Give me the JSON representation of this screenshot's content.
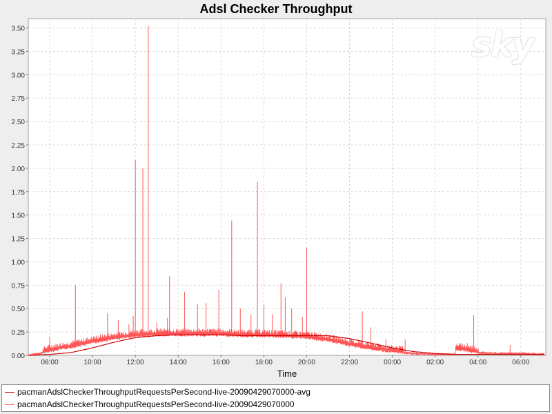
{
  "chart_data": {
    "type": "line",
    "title": "Adsl Checker Throughput",
    "xlabel": "Time",
    "ylabel": "",
    "x_ticks": [
      "08:00",
      "10:00",
      "12:00",
      "14:00",
      "16:00",
      "18:00",
      "20:00",
      "22:00",
      "00:00",
      "02:00",
      "04:00",
      "06:00"
    ],
    "xlim": [
      "07:00",
      "31:10"
    ],
    "y_ticks": [
      "0.00",
      "0.25",
      "0.50",
      "0.75",
      "1.00",
      "1.25",
      "1.50",
      "1.75",
      "2.00",
      "2.25",
      "2.50",
      "2.75",
      "3.00",
      "3.25",
      "3.50"
    ],
    "ylim": [
      0,
      3.6
    ],
    "grid": true,
    "legend_placement": "bottom",
    "series": [
      {
        "name": "pacmanAdslCheckerThroughputRequestsPerSecond-live-20090429070000-avg",
        "color": "#cc0000",
        "x_hours": [
          7.0,
          8.0,
          9.0,
          10.0,
          11.0,
          12.0,
          13.0,
          14.0,
          15.0,
          16.0,
          17.0,
          18.0,
          19.0,
          20.0,
          21.0,
          22.0,
          23.0,
          24.0,
          25.0,
          26.0,
          27.0,
          28.0,
          29.0,
          30.0,
          31.1
        ],
        "values": [
          0.0,
          0.01,
          0.03,
          0.08,
          0.14,
          0.19,
          0.21,
          0.22,
          0.22,
          0.22,
          0.21,
          0.21,
          0.21,
          0.21,
          0.21,
          0.18,
          0.13,
          0.08,
          0.04,
          0.02,
          0.01,
          0.01,
          0.01,
          0.01,
          0.01
        ]
      },
      {
        "name": "pacmanAdslCheckerThroughputRequestsPerSecond-live-20090429070000",
        "color": "#ff5555",
        "baseline_x_hours": [
          7.0,
          7.5,
          8.0,
          9.0,
          10.0,
          11.0,
          12.0,
          13.0,
          14.0,
          15.0,
          16.0,
          17.0,
          18.0,
          19.0,
          20.0,
          21.0,
          22.0,
          23.0,
          24.0,
          25.0,
          26.0,
          26.9,
          27.0,
          28.0,
          29.0,
          30.0,
          31.1
        ],
        "baseline_values": [
          0.0,
          0.02,
          0.05,
          0.09,
          0.14,
          0.18,
          0.21,
          0.22,
          0.22,
          0.22,
          0.22,
          0.21,
          0.21,
          0.2,
          0.19,
          0.16,
          0.11,
          0.07,
          0.04,
          0.02,
          0.01,
          0.01,
          0.07,
          0.03,
          0.02,
          0.02,
          0.01
        ],
        "spikes": [
          {
            "x": 8.0,
            "y": 0.2
          },
          {
            "x": 9.2,
            "y": 0.75
          },
          {
            "x": 10.7,
            "y": 0.45
          },
          {
            "x": 11.2,
            "y": 0.38
          },
          {
            "x": 11.7,
            "y": 0.33
          },
          {
            "x": 11.9,
            "y": 0.42
          },
          {
            "x": 12.0,
            "y": 2.09
          },
          {
            "x": 12.35,
            "y": 2.0
          },
          {
            "x": 12.6,
            "y": 3.52
          },
          {
            "x": 13.0,
            "y": 0.35
          },
          {
            "x": 13.5,
            "y": 0.4
          },
          {
            "x": 13.6,
            "y": 0.85
          },
          {
            "x": 14.3,
            "y": 0.68
          },
          {
            "x": 14.9,
            "y": 0.55
          },
          {
            "x": 15.3,
            "y": 0.56
          },
          {
            "x": 15.9,
            "y": 0.7
          },
          {
            "x": 16.5,
            "y": 1.44
          },
          {
            "x": 16.9,
            "y": 0.5
          },
          {
            "x": 17.4,
            "y": 0.43
          },
          {
            "x": 17.7,
            "y": 1.86
          },
          {
            "x": 18.0,
            "y": 0.54
          },
          {
            "x": 18.4,
            "y": 0.44
          },
          {
            "x": 18.8,
            "y": 0.77
          },
          {
            "x": 19.0,
            "y": 0.62
          },
          {
            "x": 19.3,
            "y": 0.5
          },
          {
            "x": 19.8,
            "y": 0.41
          },
          {
            "x": 20.0,
            "y": 1.15
          },
          {
            "x": 22.6,
            "y": 0.47
          },
          {
            "x": 23.0,
            "y": 0.3
          },
          {
            "x": 23.7,
            "y": 0.17
          },
          {
            "x": 24.6,
            "y": 0.17
          },
          {
            "x": 27.5,
            "y": 0.13
          },
          {
            "x": 27.8,
            "y": 0.43
          },
          {
            "x": 29.5,
            "y": 0.11
          }
        ]
      }
    ]
  },
  "logo_text": "sky"
}
